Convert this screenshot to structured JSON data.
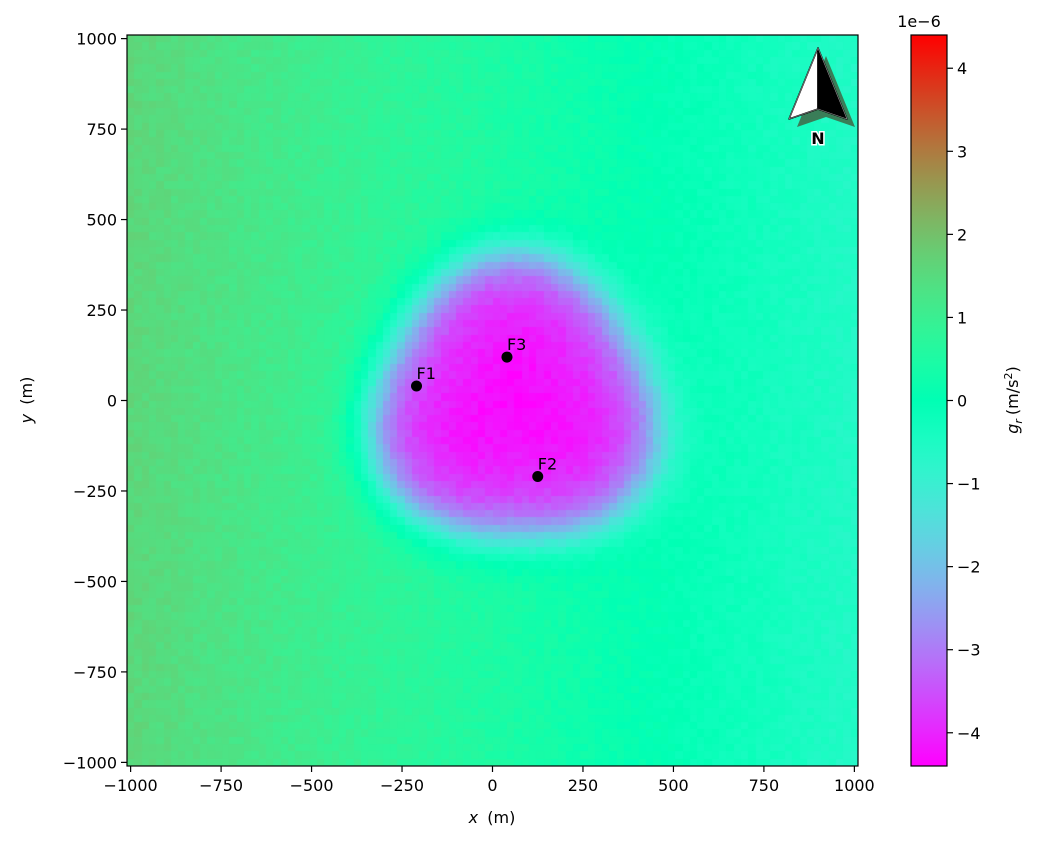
{
  "chart_data": {
    "type": "heatmap",
    "title": "",
    "xlabel_var": "x",
    "xlabel_unit": "(m)",
    "ylabel_var": "y",
    "ylabel_unit": "(m)",
    "xlim": [
      -1010,
      1010
    ],
    "ylim": [
      -1010,
      1010
    ],
    "x_ticks": [
      -1000,
      -750,
      -500,
      -250,
      0,
      250,
      500,
      750,
      1000
    ],
    "y_ticks": [
      -1000,
      -750,
      -500,
      -250,
      0,
      250,
      500,
      750,
      1000
    ],
    "x_tick_labels": [
      "−1000",
      "−750",
      "−500",
      "−250",
      "0",
      "250",
      "500",
      "750",
      "1000"
    ],
    "y_tick_labels": [
      "−1000",
      "−750",
      "−500",
      "−250",
      "0",
      "250",
      "500",
      "750",
      "1000"
    ],
    "grid": false,
    "grid_cells": 100,
    "field": {
      "description_values": "gravity anomaly g_r in m/s^2",
      "background_gradient": {
        "west": 1.6e-06,
        "east": -6e-07
      },
      "anomaly_center": [
        60,
        -10
      ],
      "anomaly_min": -4.3e-06,
      "anomaly_extent_x_m": [
        -430,
        440
      ],
      "anomaly_extent_y_m": [
        -480,
        400
      ]
    },
    "points": [
      {
        "label": "F1",
        "x": -210,
        "y": 40
      },
      {
        "label": "F2",
        "x": 125,
        "y": -210
      },
      {
        "label": "F3",
        "x": 40,
        "y": 120
      }
    ],
    "colorbar": {
      "label_var": "g",
      "label_sub": "r",
      "label_unit_open": "(m/s",
      "label_unit_sup": "2",
      "label_unit_close": ")",
      "scale_label": "1e−6",
      "range": [
        -4.4,
        4.4
      ],
      "ticks": [
        -4,
        -3,
        -2,
        -1,
        0,
        1,
        2,
        3,
        4
      ],
      "tick_labels": [
        "−4",
        "−3",
        "−2",
        "−1",
        "0",
        "1",
        "2",
        "3",
        "4"
      ],
      "colormap": "rainbow"
    },
    "north_arrow": {
      "label": "N",
      "placement": "top-right"
    }
  }
}
